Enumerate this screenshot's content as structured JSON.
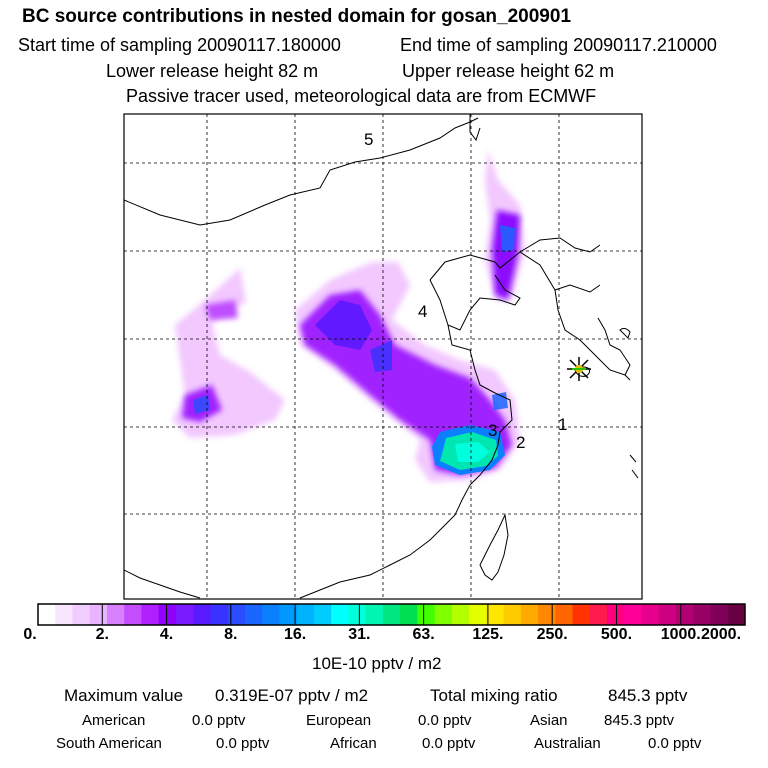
{
  "header": {
    "title": "BC  source contributions in nested domain for gosan_200901",
    "start": "Start time of sampling 20090117.180000",
    "end": "End time of sampling 20090117.210000",
    "lower": "Lower release height   82 m",
    "upper": "Upper release height   62 m",
    "tracer": "Passive tracer used, meteorological data are from ECMWF"
  },
  "chart_data": {
    "type": "heatmap",
    "title": "BC  source contributions in nested domain for gosan_200901",
    "map_labels": [
      "5",
      "4",
      "3",
      "2",
      "1"
    ],
    "colorbar": {
      "ticks": [
        "0.",
        "2.",
        "4.",
        "8.",
        "16.",
        "31.",
        "63.",
        "125.",
        "250.",
        "500.",
        "1000.",
        "2000."
      ],
      "colors": [
        "#ffffff",
        "#f8e6ff",
        "#f0ccff",
        "#e8b3ff",
        "#d980ff",
        "#c44dff",
        "#b020ff",
        "#9000ff",
        "#7a1aff",
        "#5a1aff",
        "#3a33ff",
        "#2a4dff",
        "#1a66ff",
        "#0a80ff",
        "#0099ff",
        "#00b3ff",
        "#00ccff",
        "#00ffff",
        "#00ffdd",
        "#00f5b0",
        "#00e680",
        "#00e050",
        "#40ff00",
        "#80ff00",
        "#b3ff00",
        "#e6ff00",
        "#ffe600",
        "#ffcc00",
        "#ffaa00",
        "#ff8800",
        "#ff6600",
        "#ff3300",
        "#ff1a4d",
        "#ff0080",
        "#ff0099",
        "#e6008c",
        "#cc0080",
        "#b30073",
        "#990066",
        "#800059",
        "#660040"
      ],
      "unit": "10E-10 pptv / m2"
    },
    "receptor": "gosan"
  },
  "summary": {
    "max_label": "Maximum value",
    "max_value": "0.319E-07 pptv / m2",
    "total_label": "Total mixing ratio",
    "total_value": "845.3 pptv",
    "regions": [
      {
        "name": "American",
        "value": "0.0 pptv"
      },
      {
        "name": "European",
        "value": "0.0 pptv"
      },
      {
        "name": "Asian",
        "value": "845.3 pptv"
      },
      {
        "name": "South American",
        "value": "0.0 pptv"
      },
      {
        "name": "African",
        "value": "0.0 pptv"
      },
      {
        "name": "Australian",
        "value": "0.0 pptv"
      }
    ]
  }
}
